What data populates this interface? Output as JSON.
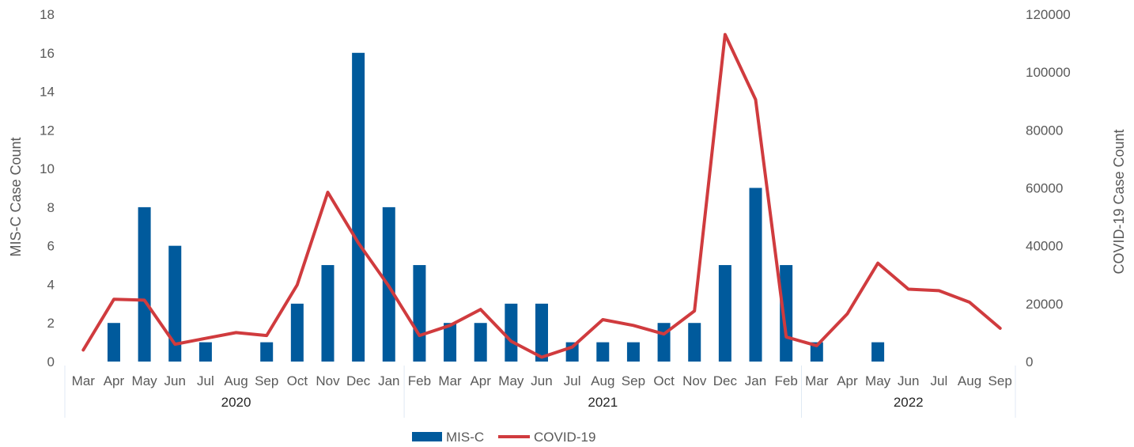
{
  "chart_data": {
    "type": "bar+line",
    "categories": [
      "Mar",
      "Apr",
      "May",
      "Jun",
      "Jul",
      "Aug",
      "Sep",
      "Oct",
      "Nov",
      "Dec",
      "Jan",
      "Feb",
      "Mar",
      "Apr",
      "May",
      "Jun",
      "Jul",
      "Aug",
      "Sep",
      "Oct",
      "Nov",
      "Dec",
      "Jan",
      "Feb",
      "Mar",
      "Apr",
      "May",
      "Jun",
      "Jul",
      "Aug",
      "Sep"
    ],
    "year_groups": [
      {
        "label": "2020",
        "start": 0,
        "end": 10
      },
      {
        "label": "2021",
        "start": 11,
        "end": 23
      },
      {
        "label": "2022",
        "start": 24,
        "end": 30
      }
    ],
    "series": [
      {
        "name": "MIS-C",
        "type": "bar",
        "axis": "left",
        "color": "#005a9c",
        "values": [
          0,
          2,
          8,
          6,
          1,
          0,
          1,
          3,
          5,
          16,
          8,
          5,
          2,
          2,
          3,
          3,
          1,
          1,
          1,
          2,
          2,
          5,
          9,
          5,
          1,
          0,
          1,
          0,
          0,
          0,
          0
        ]
      },
      {
        "name": "COVID-19",
        "type": "line",
        "axis": "right",
        "color": "#d03b3e",
        "values": [
          4000,
          21500,
          21200,
          6000,
          8000,
          10000,
          9000,
          26500,
          58500,
          41000,
          26000,
          9000,
          12500,
          18000,
          7000,
          1500,
          5000,
          14500,
          12500,
          9500,
          17500,
          113000,
          90500,
          8500,
          5500,
          16500,
          34000,
          25000,
          24500,
          20500,
          11500
        ]
      }
    ],
    "y_left": {
      "label": "MIS-C Case Count",
      "min": 0,
      "max": 18,
      "ticks": [
        "0",
        "2",
        "4",
        "6",
        "8",
        "10",
        "12",
        "14",
        "16",
        "18"
      ]
    },
    "y_right": {
      "label": "COVID-19 Case Count",
      "min": 0,
      "max": 120000,
      "ticks": [
        "0",
        "20000",
        "40000",
        "60000",
        "80000",
        "100000",
        "120000"
      ]
    },
    "grid": false,
    "legend_position": "bottom-center",
    "legend": [
      {
        "label": "MIS-C"
      },
      {
        "label": "COVID-19"
      }
    ]
  }
}
